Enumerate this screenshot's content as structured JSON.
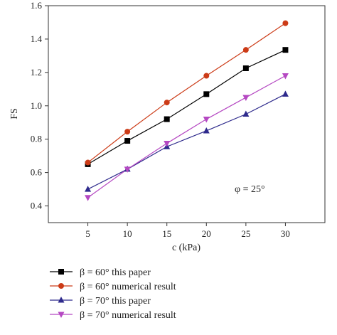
{
  "chart_data": {
    "type": "line",
    "xlabel": "c (kPa)",
    "ylabel": "FS",
    "x": [
      5,
      10,
      15,
      20,
      25,
      30
    ],
    "xlim": [
      0,
      35
    ],
    "ylim": [
      0.3,
      1.6
    ],
    "xticks": [
      "5",
      "10",
      "15",
      "20",
      "25",
      "30"
    ],
    "yticks": [
      "0.4",
      "0.6",
      "0.8",
      "1.0",
      "1.2",
      "1.4",
      "1.6"
    ],
    "grid": false,
    "legend_position": "below",
    "annotation": "φ = 25°",
    "series": [
      {
        "name": "β = 60° this paper",
        "values": [
          0.65,
          0.79,
          0.92,
          1.07,
          1.225,
          1.335
        ],
        "color": "#000000",
        "marker": "square"
      },
      {
        "name": "β = 60° numerical result",
        "values": [
          0.66,
          0.845,
          1.02,
          1.18,
          1.335,
          1.495
        ],
        "color": "#cc3b17",
        "marker": "circle"
      },
      {
        "name": "β = 70° this paper",
        "values": [
          0.5,
          0.62,
          0.755,
          0.85,
          0.95,
          1.07
        ],
        "color": "#2e2a8c",
        "marker": "triangle-up"
      },
      {
        "name": "β = 70° numerical result",
        "values": [
          0.45,
          0.62,
          0.775,
          0.92,
          1.05,
          1.18
        ],
        "color": "#b548c2",
        "marker": "triangle-down"
      }
    ]
  }
}
